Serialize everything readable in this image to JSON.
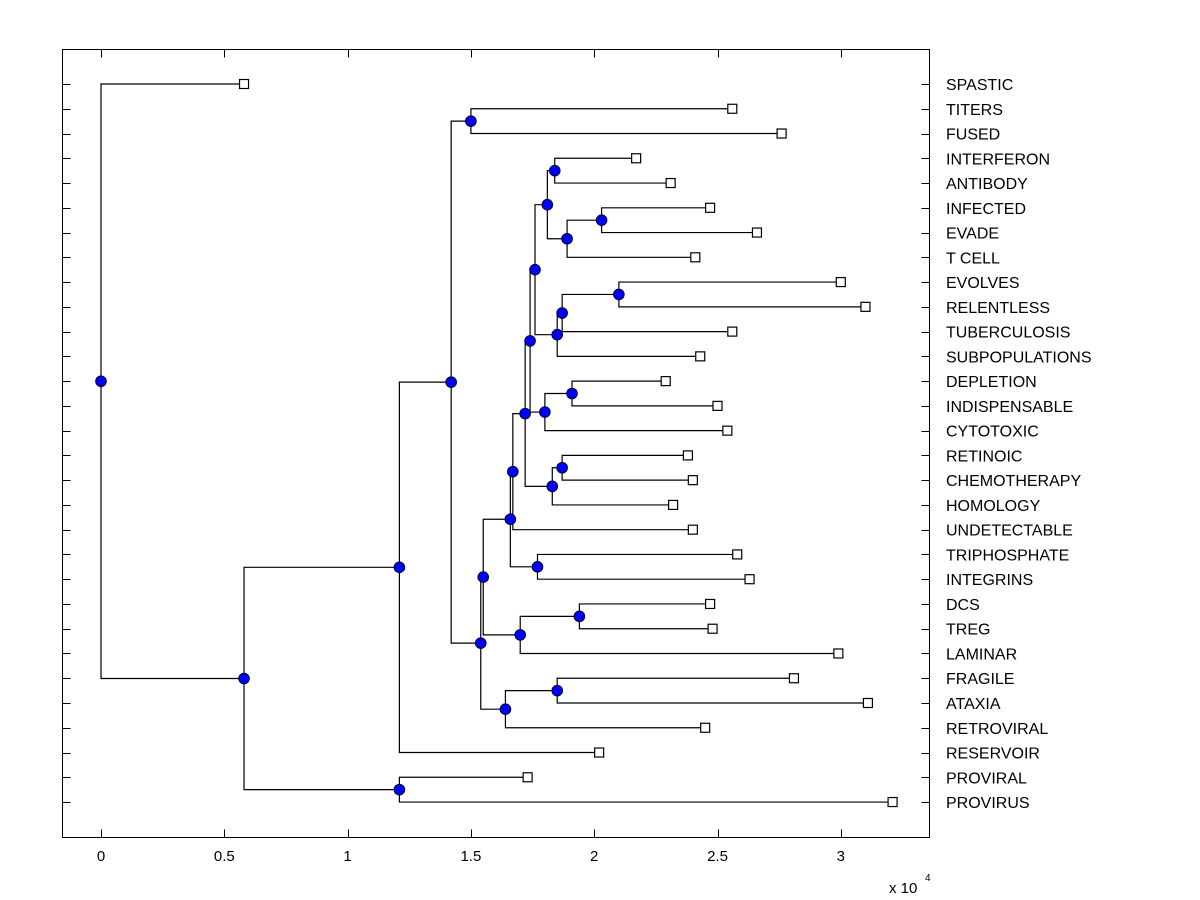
{
  "chart_data": {
    "type": "dendrogram",
    "title": "",
    "xlabel": "",
    "ylabel": "",
    "x_multiplier_label": "x 10",
    "x_multiplier_exponent": "4",
    "xlim": [
      -0.15,
      3.35
    ],
    "xticks": [
      0,
      0.5,
      1,
      1.5,
      2,
      2.5,
      3
    ],
    "xtick_labels": [
      "0",
      "0.5",
      "1",
      "1.5",
      "2",
      "2.5",
      "3"
    ],
    "grid": false,
    "colors": {
      "internal_node": "#0000ff",
      "leaf_fill": "#ffffff",
      "line": "#000000"
    },
    "leaves": [
      {
        "name": "SPASTIC",
        "x": 0.58
      },
      {
        "name": "TITERS",
        "x": 2.56
      },
      {
        "name": "FUSED",
        "x": 2.76
      },
      {
        "name": "INTERFERON",
        "x": 2.17
      },
      {
        "name": "ANTIBODY",
        "x": 2.31
      },
      {
        "name": "INFECTED",
        "x": 2.47
      },
      {
        "name": "EVADE",
        "x": 2.66
      },
      {
        "name": "T CELL",
        "x": 2.41
      },
      {
        "name": "EVOLVES",
        "x": 3.0
      },
      {
        "name": "RELENTLESS",
        "x": 3.1
      },
      {
        "name": "TUBERCULOSIS",
        "x": 2.56
      },
      {
        "name": "SUBPOPULATIONS",
        "x": 2.43
      },
      {
        "name": "DEPLETION",
        "x": 2.29
      },
      {
        "name": "INDISPENSABLE",
        "x": 2.5
      },
      {
        "name": "CYTOTOXIC",
        "x": 2.54
      },
      {
        "name": "RETINOIC",
        "x": 2.38
      },
      {
        "name": "CHEMOTHERAPY",
        "x": 2.4
      },
      {
        "name": "HOMOLOGY",
        "x": 2.32
      },
      {
        "name": "UNDETECTABLE",
        "x": 2.4
      },
      {
        "name": "TRIPHOSPHATE",
        "x": 2.58
      },
      {
        "name": "INTEGRINS",
        "x": 2.63
      },
      {
        "name": "DCS",
        "x": 2.47
      },
      {
        "name": "TREG",
        "x": 2.48
      },
      {
        "name": "LAMINAR",
        "x": 2.99
      },
      {
        "name": "FRAGILE",
        "x": 2.81
      },
      {
        "name": "ATAXIA",
        "x": 3.11
      },
      {
        "name": "RETROVIRAL",
        "x": 2.45
      },
      {
        "name": "RESERVOIR",
        "x": 2.02
      },
      {
        "name": "PROVIRAL",
        "x": 1.73
      },
      {
        "name": "PROVIRUS",
        "x": 3.21
      }
    ],
    "tree": {
      "id": "root",
      "x": 0.0,
      "children": [
        {
          "leaf": "SPASTIC"
        },
        {
          "id": "A",
          "x": 0.58,
          "children": [
            {
              "id": "B",
              "x": 1.21,
              "children": [
                {
                  "id": "D",
                  "x": 1.42,
                  "children": [
                    {
                      "id": "E",
                      "x": 1.5,
                      "children": [
                        {
                          "leaf": "TITERS"
                        },
                        {
                          "leaf": "FUSED"
                        }
                      ]
                    },
                    {
                      "id": "F",
                      "x": 1.54,
                      "children": [
                        {
                          "id": "G",
                          "x": 1.55,
                          "children": [
                            {
                              "id": "J",
                              "x": 1.66,
                              "children": [
                                {
                                  "id": "M",
                                  "x": 1.67,
                                  "children": [
                                    {
                                      "id": "O",
                                      "x": 1.72,
                                      "children": [
                                        {
                                          "id": "P",
                                          "x": 1.74,
                                          "children": [
                                            {
                                              "id": "S",
                                              "x": 1.76,
                                              "children": [
                                                {
                                                  "id": "V",
                                                  "x": 1.81,
                                                  "children": [
                                                    {
                                                      "id": "Z",
                                                      "x": 1.84,
                                                      "children": [
                                                        {
                                                          "leaf": "INTERFERON"
                                                        },
                                                        {
                                                          "leaf": "ANTIBODY"
                                                        }
                                                      ]
                                                    },
                                                    {
                                                      "id": "AA",
                                                      "x": 1.89,
                                                      "children": [
                                                        {
                                                          "id": "AB",
                                                          "x": 2.03,
                                                          "children": [
                                                            {
                                                              "leaf": "INFECTED"
                                                            },
                                                            {
                                                              "leaf": "EVADE"
                                                            }
                                                          ]
                                                        },
                                                        {
                                                          "leaf": "T CELL"
                                                        }
                                                      ]
                                                    }
                                                  ]
                                                },
                                                {
                                                  "id": "W",
                                                  "x": 1.85,
                                                  "children": [
                                                    {
                                                      "id": "X",
                                                      "x": 1.87,
                                                      "children": [
                                                        {
                                                          "id": "Y",
                                                          "x": 2.1,
                                                          "children": [
                                                            {
                                                              "leaf": "EVOLVES"
                                                            },
                                                            {
                                                              "leaf": "RELENTLESS"
                                                            }
                                                          ]
                                                        },
                                                        {
                                                          "leaf": "TUBERCULOSIS"
                                                        }
                                                      ]
                                                    },
                                                    {
                                                      "leaf": "SUBPOPULATIONS"
                                                    }
                                                  ]
                                                }
                                              ]
                                            },
                                            {
                                              "id": "T",
                                              "x": 1.8,
                                              "children": [
                                                {
                                                  "id": "U",
                                                  "x": 1.91,
                                                  "children": [
                                                    {
                                                      "leaf": "DEPLETION"
                                                    },
                                                    {
                                                      "leaf": "INDISPENSABLE"
                                                    }
                                                  ]
                                                },
                                                {
                                                  "leaf": "CYTOTOXIC"
                                                }
                                              ]
                                            }
                                          ]
                                        },
                                        {
                                          "id": "Q",
                                          "x": 1.83,
                                          "children": [
                                            {
                                              "id": "R",
                                              "x": 1.87,
                                              "children": [
                                                {
                                                  "leaf": "RETINOIC"
                                                },
                                                {
                                                  "leaf": "CHEMOTHERAPY"
                                                }
                                              ]
                                            },
                                            {
                                              "leaf": "HOMOLOGY"
                                            }
                                          ]
                                        }
                                      ]
                                    },
                                    {
                                      "leaf": "UNDETECTABLE"
                                    }
                                  ]
                                },
                                {
                                  "id": "N",
                                  "x": 1.77,
                                  "children": [
                                    {
                                      "leaf": "TRIPHOSPHATE"
                                    },
                                    {
                                      "leaf": "INTEGRINS"
                                    }
                                  ]
                                }
                              ]
                            },
                            {
                              "id": "K",
                              "x": 1.7,
                              "children": [
                                {
                                  "id": "L",
                                  "x": 1.94,
                                  "children": [
                                    {
                                      "leaf": "DCS"
                                    },
                                    {
                                      "leaf": "TREG"
                                    }
                                  ]
                                },
                                {
                                  "leaf": "LAMINAR"
                                }
                              ]
                            }
                          ]
                        },
                        {
                          "id": "H",
                          "x": 1.64,
                          "children": [
                            {
                              "id": "I",
                              "x": 1.85,
                              "children": [
                                {
                                  "leaf": "FRAGILE"
                                },
                                {
                                  "leaf": "ATAXIA"
                                }
                              ]
                            },
                            {
                              "leaf": "RETROVIRAL"
                            }
                          ]
                        }
                      ]
                    }
                  ]
                },
                {
                  "leaf": "RESERVOIR"
                }
              ]
            },
            {
              "id": "C",
              "x": 1.21,
              "children": [
                {
                  "leaf": "PROVIRAL"
                },
                {
                  "leaf": "PROVIRUS"
                }
              ]
            }
          ]
        }
      ]
    }
  }
}
